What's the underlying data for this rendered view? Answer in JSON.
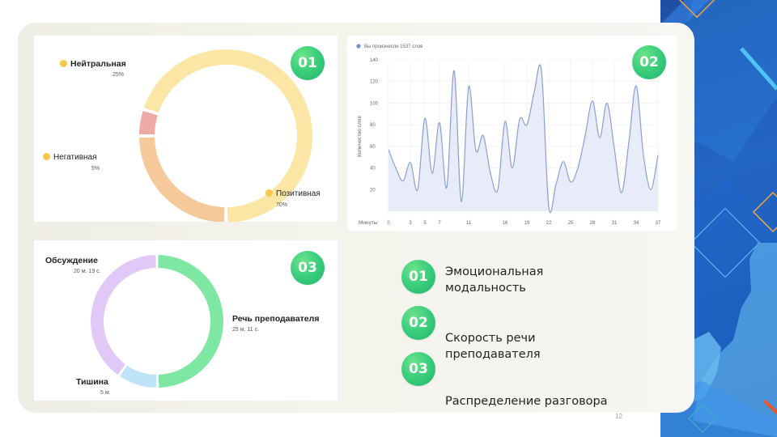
{
  "slide": {
    "page_number": "12"
  },
  "emotion": {
    "badge": "01",
    "segments": [
      {
        "name": "Нейтральная",
        "percent_label": "25%",
        "value": 25,
        "color": "#f5c99a"
      },
      {
        "name": "Негативная",
        "percent_label": "5%",
        "value": 5,
        "color": "#eeaaa5"
      },
      {
        "name": "Позитивная",
        "percent_label": "70%",
        "value": 70,
        "color": "#fbe6a6"
      }
    ]
  },
  "speech": {
    "badge": "02",
    "legend": "Вы произнесли 1537 слов",
    "y_axis_label": "Количество слов",
    "x_axis_label": "Минуты",
    "line_color": "#8a9fd0",
    "fill_color": "#e7ecf8"
  },
  "conversation": {
    "badge": "03",
    "segments": [
      {
        "name": "Речь преподавателя",
        "time_label": "25 м. 11 с.",
        "color": "#7ee8a2"
      },
      {
        "name": "Тишина",
        "time_label": "5 м.",
        "color": "#bfe3f7"
      },
      {
        "name": "Обсуждение",
        "time_label": "20 м. 19 с.",
        "color": "#e2c8f7"
      }
    ]
  },
  "legend": [
    {
      "num": "01",
      "text": "Эмоциональная модальность"
    },
    {
      "num": "02",
      "text": "Скорость речи преподавателя"
    },
    {
      "num": "03",
      "text": "Распределение разговора"
    }
  ],
  "chart_data": [
    {
      "type": "pie",
      "title": "",
      "categories": [
        "Нейтральная",
        "Негативная",
        "Позитивная"
      ],
      "values": [
        25,
        5,
        70
      ]
    },
    {
      "type": "area",
      "title": "",
      "xlabel": "Минуты",
      "ylabel": "Количество слов",
      "x_ticks": [
        0,
        3,
        5,
        7,
        11,
        16,
        19,
        22,
        25,
        28,
        31,
        34,
        37
      ],
      "y_ticks": [
        20,
        40,
        60,
        80,
        100,
        120,
        140
      ],
      "ylim": [
        0,
        140
      ],
      "xlim": [
        0,
        37
      ],
      "series": [
        {
          "name": "Вы произнесли 1537 слов",
          "x": [
            0,
            1,
            2,
            3,
            4,
            5,
            6,
            7,
            8,
            9,
            10,
            11,
            12,
            13,
            14,
            15,
            16,
            17,
            18,
            19,
            20,
            21,
            22,
            23,
            24,
            25,
            26,
            27,
            28,
            29,
            30,
            31,
            32,
            33,
            34,
            35,
            36,
            37
          ],
          "y": [
            57,
            40,
            28,
            45,
            20,
            86,
            35,
            82,
            22,
            130,
            9,
            115,
            56,
            70,
            35,
            20,
            83,
            40,
            85,
            80,
            110,
            130,
            4,
            25,
            46,
            27,
            40,
            70,
            102,
            68,
            100,
            58,
            17,
            64,
            116,
            52,
            20,
            52
          ]
        }
      ]
    },
    {
      "type": "pie",
      "title": "",
      "categories": [
        "Речь преподавателя",
        "Тишина",
        "Обсуждение"
      ],
      "values": [
        25.18,
        5,
        20.32
      ]
    }
  ]
}
